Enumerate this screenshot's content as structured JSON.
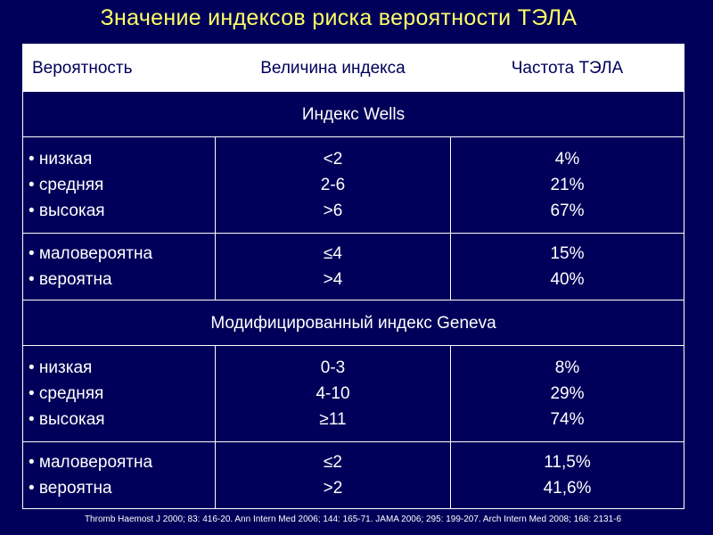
{
  "title": "Значение индексов риска вероятности ТЭЛА",
  "table": {
    "headers": [
      "Вероятность",
      "Величина индекса",
      "Частота ТЭЛА"
    ],
    "sections": [
      {
        "name": "Индекс Wells",
        "groups": [
          {
            "categories": [
              "• низкая",
              "• средняя",
              "• высокая"
            ],
            "index_values": [
              "<2",
              "2-6",
              ">6"
            ],
            "frequencies": [
              "4%",
              "21%",
              "67%"
            ]
          },
          {
            "categories": [
              "• маловероятна",
              "• вероятна"
            ],
            "index_values": [
              "≤4",
              ">4"
            ],
            "frequencies": [
              "15%",
              "40%"
            ]
          }
        ]
      },
      {
        "name": "Модифицированный индекс Geneva",
        "groups": [
          {
            "categories": [
              "• низкая",
              "• средняя",
              "• высокая"
            ],
            "index_values": [
              "0-3",
              "4-10",
              "≥11"
            ],
            "frequencies": [
              "8%",
              "29%",
              "74%"
            ]
          },
          {
            "categories": [
              "• маловероятна",
              "• вероятна"
            ],
            "index_values": [
              "≤2",
              ">2"
            ],
            "frequencies": [
              "11,5%",
              "41,6%"
            ]
          }
        ]
      }
    ]
  },
  "footnote": "Thromb Haemost J 2000; 83: 416-20.  Ann Intern Med 2006; 144: 165-71.  JAMA 2006; 295: 199-207.   Arch Intern Med 2008; 168: 2131-6",
  "colors": {
    "background": "#00005a",
    "title": "#ffff66",
    "header_bg": "#ffffff",
    "header_text": "#00005a",
    "text": "#ffffff"
  }
}
